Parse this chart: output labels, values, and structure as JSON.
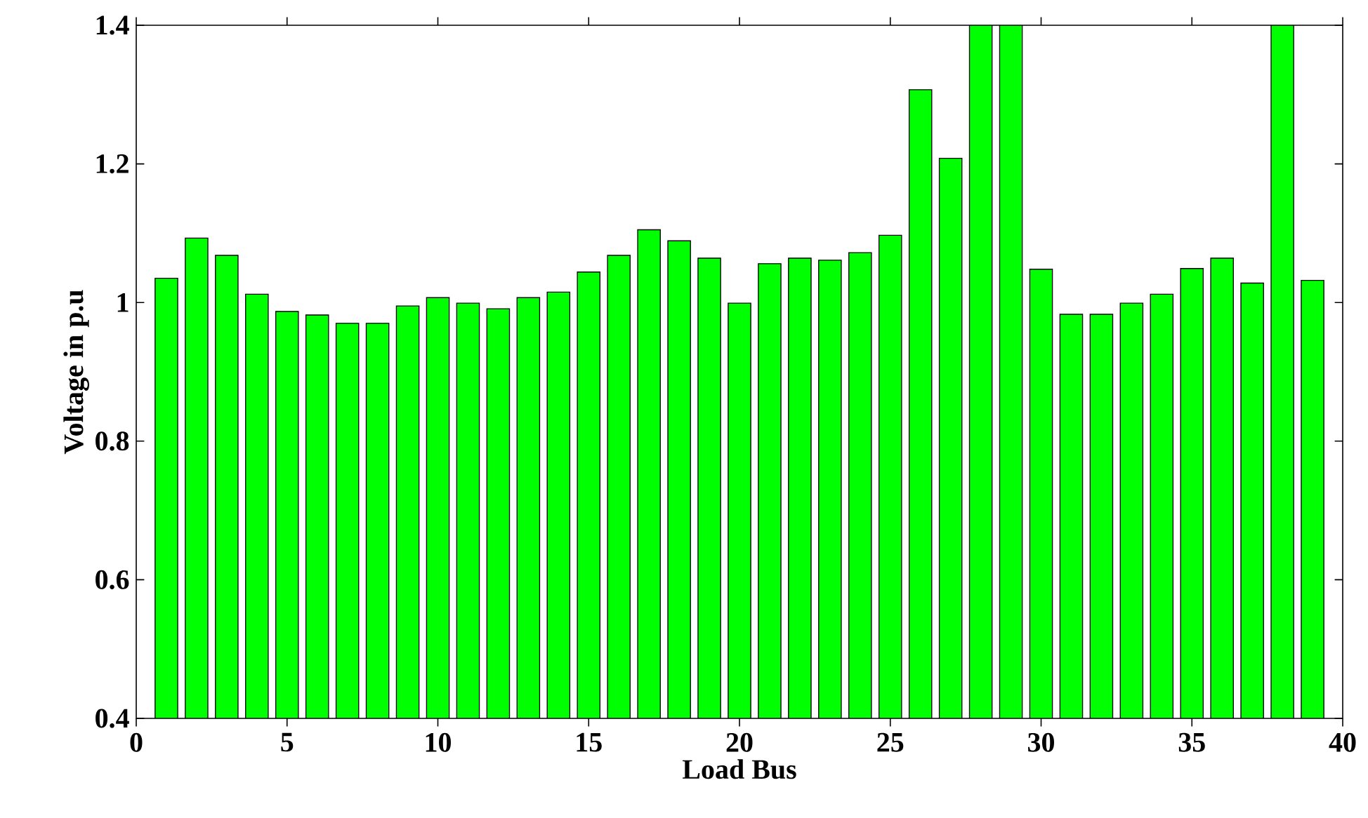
{
  "chart_data": {
    "type": "bar",
    "xlabel": "Load Bus",
    "ylabel": "Voltage in p.u",
    "x": [
      1,
      2,
      3,
      4,
      5,
      6,
      7,
      8,
      9,
      10,
      11,
      12,
      13,
      14,
      15,
      16,
      17,
      18,
      19,
      20,
      21,
      22,
      23,
      24,
      25,
      26,
      27,
      28,
      29,
      30,
      31,
      32,
      33,
      34,
      35,
      36,
      37,
      38,
      39
    ],
    "values": [
      1.035,
      1.093,
      1.068,
      1.012,
      0.987,
      0.982,
      0.97,
      0.97,
      0.995,
      1.007,
      0.999,
      0.991,
      1.007,
      1.015,
      1.044,
      1.068,
      1.105,
      1.089,
      1.064,
      0.999,
      1.056,
      1.064,
      1.061,
      1.072,
      1.097,
      1.307,
      1.208,
      1.4,
      1.4,
      1.048,
      0.983,
      0.983,
      0.999,
      1.012,
      1.049,
      1.064,
      1.028,
      1.4,
      1.032
    ],
    "color": "#00ff00",
    "xlim": [
      0,
      40
    ],
    "xticks": [
      0,
      5,
      10,
      15,
      20,
      25,
      30,
      35,
      40
    ],
    "ylim": [
      0.4,
      1.4
    ],
    "yticks": [
      0.4,
      0.6,
      0.8,
      1,
      1.2,
      1.4
    ]
  }
}
